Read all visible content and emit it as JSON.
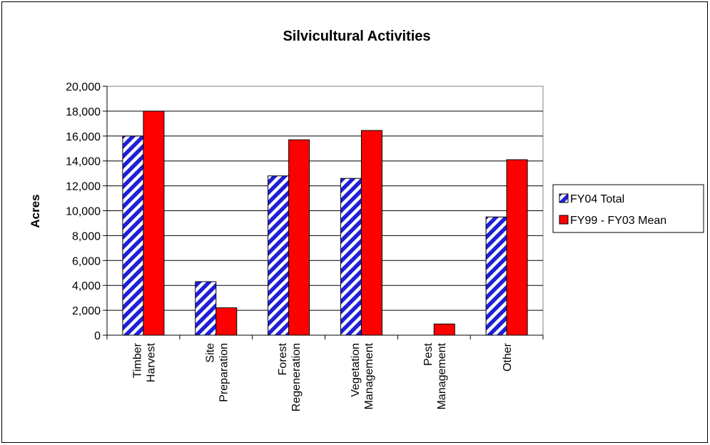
{
  "chart_data": {
    "type": "bar",
    "title": "Silvicultural Activities",
    "xlabel": "",
    "ylabel": "Acres",
    "ylim": [
      0,
      20000
    ],
    "yticks": [
      0,
      2000,
      4000,
      6000,
      8000,
      10000,
      12000,
      14000,
      16000,
      18000,
      20000
    ],
    "ytick_labels": [
      "0",
      "2,000",
      "4,000",
      "6,000",
      "8,000",
      "10,000",
      "12,000",
      "14,000",
      "16,000",
      "18,000",
      "20,000"
    ],
    "grid": "horizontal major gridlines",
    "legend_position": "right",
    "categories": [
      [
        "Timber",
        "Harvest"
      ],
      [
        "Site",
        "Preparation"
      ],
      [
        "Forest",
        "Regeneration"
      ],
      [
        "Vegetation",
        "Management"
      ],
      [
        "Pest",
        "Management"
      ],
      [
        "Other"
      ]
    ],
    "series": [
      {
        "name": "FY04 Total",
        "pattern": "blue-white diagonal stripes",
        "color": "#1f1fd6",
        "values": [
          16000,
          4300,
          12800,
          12600,
          0,
          9500
        ]
      },
      {
        "name": "FY99 - FY03 Mean",
        "color": "#ff0000",
        "values": [
          18000,
          2200,
          15700,
          16450,
          900,
          14100
        ]
      }
    ]
  }
}
